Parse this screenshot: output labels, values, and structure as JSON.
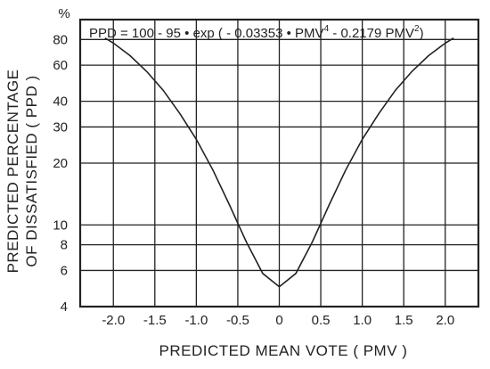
{
  "chart_data": {
    "type": "line",
    "title": "",
    "formula": {
      "part1": "PPD = 100 - 95 • exp ( - 0.03353 • PMV",
      "exp1": "4",
      "part2": " - 0.2179 PMV",
      "exp2": "2",
      "part3": ")"
    },
    "xlabel": "PREDICTED MEAN VOTE ( PMV )",
    "ylabel_line1": "PREDICTED PERCENTAGE",
    "ylabel_line2": "OF DISSATISFIED ( PPD )",
    "y_unit_label": "%",
    "x_tick_labels": [
      "-2.0",
      "-1.5",
      "-1.0",
      "-0.5",
      "0",
      "0.5",
      "1.0",
      "1.5",
      "2.0"
    ],
    "x_ticks": [
      -2.0,
      -1.5,
      -1.0,
      -0.5,
      0,
      0.5,
      1.0,
      1.5,
      2.0
    ],
    "y_tick_labels": [
      "4",
      "6",
      "8",
      "10",
      "20",
      "30",
      "40",
      "60",
      "80"
    ],
    "y_ticks": [
      4,
      6,
      8,
      10,
      20,
      30,
      40,
      60,
      80
    ],
    "xlim": [
      -2.4,
      2.4
    ],
    "ylim": [
      4,
      100
    ],
    "y_scale": "log",
    "grid": true,
    "series": [
      {
        "x": [
          -2.1,
          -2.0,
          -1.8,
          -1.6,
          -1.4,
          -1.2,
          -1.0,
          -0.8,
          -0.6,
          -0.4,
          -0.2,
          0.0,
          0.2,
          0.4,
          0.6,
          0.8,
          1.0,
          1.2,
          1.4,
          1.6,
          1.8,
          2.0,
          2.1
        ],
        "y": [
          81.3,
          76.8,
          66.8,
          56.0,
          45.3,
          34.9,
          26.1,
          18.5,
          12.5,
          8.3,
          5.8,
          5.0,
          5.8,
          8.3,
          12.5,
          18.5,
          26.1,
          34.9,
          45.3,
          56.0,
          66.8,
          76.8,
          81.3
        ]
      }
    ]
  }
}
